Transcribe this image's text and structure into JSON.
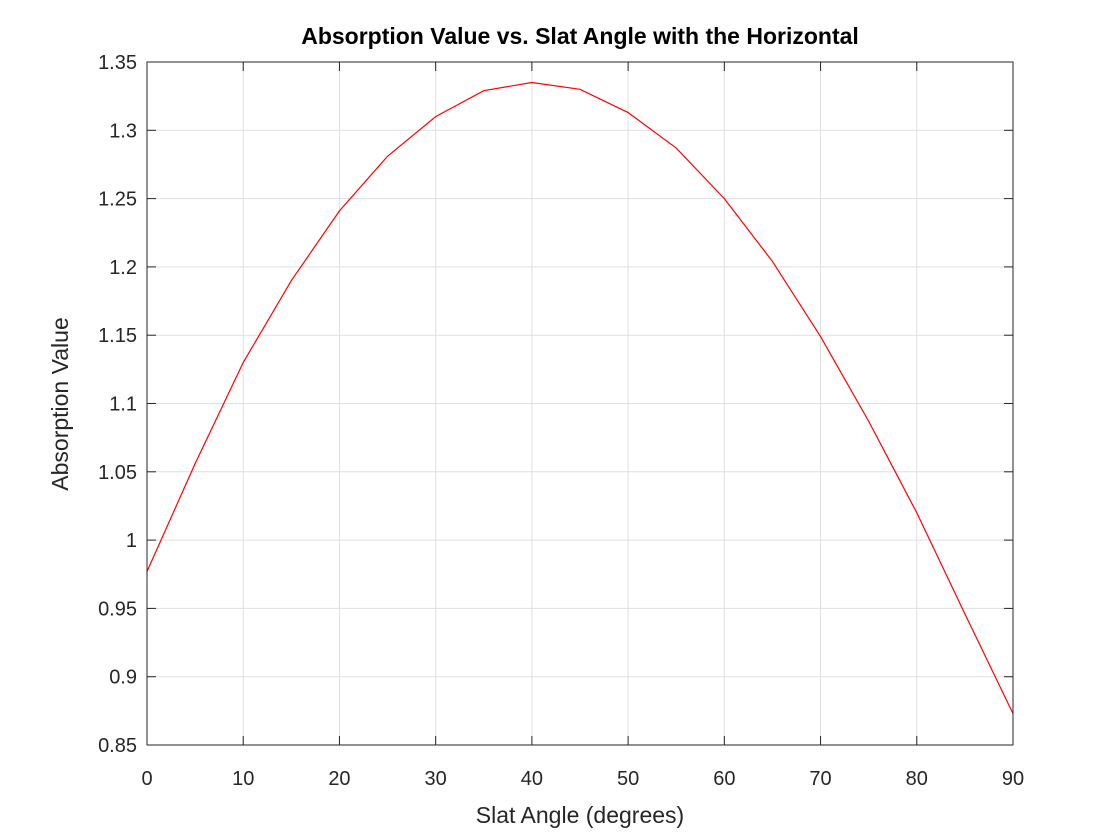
{
  "chart_data": {
    "type": "line",
    "title": "Absorption Value vs. Slat Angle with the Horizontal",
    "xlabel": "Slat Angle (degrees)",
    "ylabel": "Absorption Value",
    "x": [
      0,
      5,
      10,
      15,
      20,
      25,
      30,
      35,
      40,
      45,
      50,
      55,
      60,
      65,
      70,
      75,
      80,
      85,
      90
    ],
    "series": [
      {
        "color": "#ff0000",
        "values": [
          0.977,
          1.056,
          1.13,
          1.19,
          1.241,
          1.281,
          1.31,
          1.329,
          1.335,
          1.33,
          1.313,
          1.287,
          1.25,
          1.204,
          1.149,
          1.087,
          1.02,
          0.946,
          0.873
        ]
      }
    ],
    "xlim": [
      0,
      90
    ],
    "xticks": [
      0,
      10,
      20,
      30,
      40,
      50,
      60,
      70,
      80,
      90
    ],
    "ylim": [
      0.85,
      1.35
    ],
    "yticks": [
      0.85,
      0.9,
      0.95,
      1,
      1.05,
      1.1,
      1.15,
      1.2,
      1.25,
      1.3,
      1.35
    ],
    "grid": true
  }
}
